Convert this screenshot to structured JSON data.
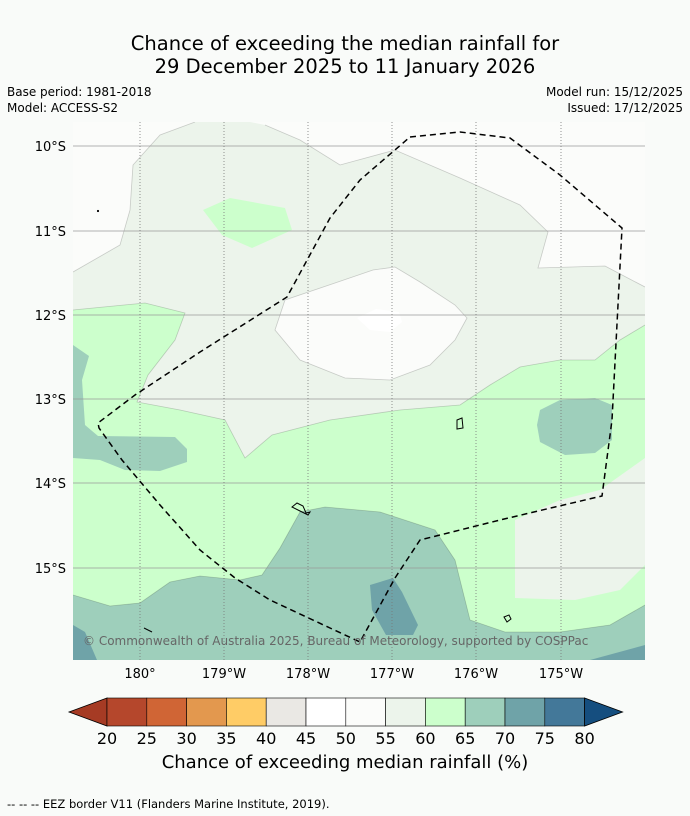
{
  "title": {
    "line1": "Chance of exceeding the median rainfall for",
    "line2": "29 December 2025 to 11 January 2026"
  },
  "meta": {
    "base_period": "Base period: 1981-2018",
    "model": "Model: ACCESS-S2",
    "model_run": "Model run: 15/12/2025",
    "issued": "Issued: 17/12/2025"
  },
  "map": {
    "lat_labels": [
      "10°S",
      "11°S",
      "12°S",
      "13°S",
      "14°S",
      "15°S"
    ],
    "lon_labels": [
      "180°",
      "179°W",
      "178°W",
      "177°W",
      "176°W",
      "175°W"
    ],
    "copyright": "© Commonwealth of Australia 2025, Bureau of Meteorology, supported by COSPPac",
    "colors": {
      "c45_50": "#ffffff",
      "c50_55": "#fbfcfa",
      "c55_60": "#ecf4eb",
      "c60_65": "#ccffcc",
      "c65_70": "#9ecfbb",
      "c70_75": "#6fa3a8",
      "c75_80": "#3f7394"
    }
  },
  "colorbar": {
    "ticks": [
      "20",
      "25",
      "30",
      "35",
      "40",
      "45",
      "50",
      "55",
      "60",
      "65",
      "70",
      "75",
      "80"
    ],
    "colors": [
      "#a63b24",
      "#b5472c",
      "#d06535",
      "#e3984e",
      "#ffcc66",
      "#eae8e4",
      "#ffffff",
      "#fbfcfa",
      "#ecf4eb",
      "#ccffcc",
      "#9ecfbb",
      "#6fa3a8",
      "#437899",
      "#154e7f"
    ],
    "label": "Chance of exceeding median rainfall (%)"
  },
  "legend": {
    "eez_symbol": "-- -- --",
    "eez_label": "EEZ border V11 (Flanders Marine Institute, 2019)."
  }
}
